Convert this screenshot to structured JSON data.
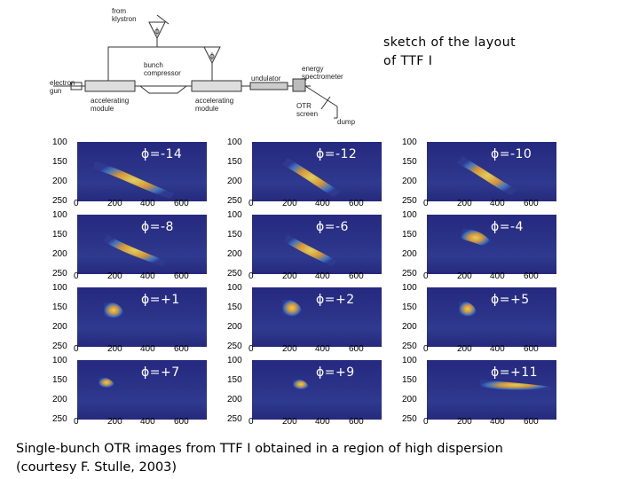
{
  "sketch_caption": [
    "sketch of the layout",
    "of TTF I"
  ],
  "layout_labels": {
    "from_klystron": [
      "from",
      "klystron"
    ],
    "phi_symbol": "ϕ",
    "bunch_compressor": [
      "bunch",
      "compressor"
    ],
    "electron_gun": [
      "electron",
      "gun"
    ],
    "accelerating_module": [
      "accelerating",
      "module"
    ],
    "undulator": "undulator",
    "energy_spectrometer": [
      "energy",
      "spectrometer"
    ],
    "otr_screen": [
      "OTR",
      "screen"
    ],
    "dump": "dump"
  },
  "axes": {
    "y_ticks": [
      "100",
      "150",
      "200",
      "250"
    ],
    "x_ticks": [
      "0",
      "200",
      "400",
      "600"
    ]
  },
  "panels": [
    {
      "phase": "ϕ=-14"
    },
    {
      "phase": "ϕ=-12"
    },
    {
      "phase": "ϕ=-10"
    },
    {
      "phase": "ϕ=-8"
    },
    {
      "phase": "ϕ=-6"
    },
    {
      "phase": "ϕ=-4"
    },
    {
      "phase": "ϕ=+1"
    },
    {
      "phase": "ϕ=+2"
    },
    {
      "phase": "ϕ=+5"
    },
    {
      "phase": "ϕ=+7"
    },
    {
      "phase": "ϕ=+9"
    },
    {
      "phase": "ϕ=+11"
    }
  ],
  "caption": [
    "Single-bunch OTR images from TTF I obtained in a region of high dispersion",
    "(courtesy F. Stulle, 2003)"
  ]
}
